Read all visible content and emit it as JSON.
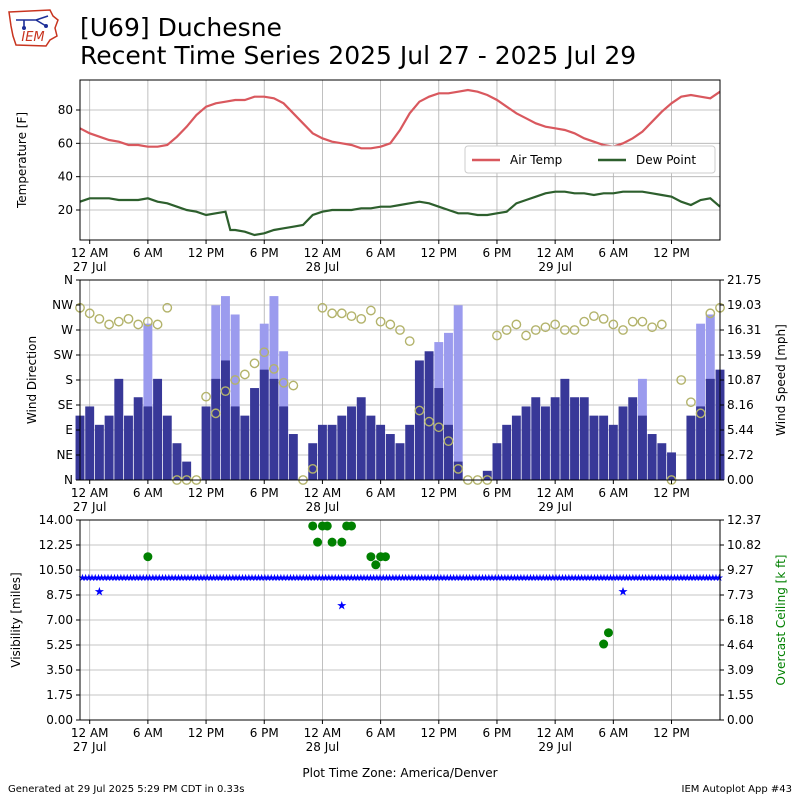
{
  "header": {
    "title_line1": "[U69] Duchesne",
    "title_line2": "Recent Time Series 2025 Jul 27 - 2025 Jul 29",
    "logo_text": "IEM"
  },
  "footer": {
    "generated": "Generated at 29 Jul 2025 5:29 PM CDT in 0.33s",
    "app": "IEM Autoplot App #43"
  },
  "colors": {
    "air_temp": "#d9585e",
    "dew_point": "#2d5f2d",
    "wind_speed": "#383898",
    "wind_gust": "#9b9bee",
    "wind_dir": "#b3b36b",
    "visibility": "#0000ff",
    "ceiling": "#008000"
  },
  "chart_data": [
    {
      "type": "line",
      "xlabel": "",
      "ylabel": "Temperature [F]",
      "xlim_hours": [
        0,
        66
      ],
      "ylim": [
        2,
        98
      ],
      "yticks": [
        20,
        40,
        60,
        80
      ],
      "xtick_hours": [
        1,
        7,
        13,
        19,
        25,
        31,
        37,
        43,
        49,
        55,
        61
      ],
      "xtick_labels": [
        "12 AM",
        "6 AM",
        "12 PM",
        "6 PM",
        "12 AM",
        "6 AM",
        "12 PM",
        "6 PM",
        "12 AM",
        "6 AM",
        "12 PM"
      ],
      "xtick_dates": [
        "27 Jul",
        "",
        "",
        "",
        "28 Jul",
        "",
        "",
        "",
        "29 Jul",
        "",
        ""
      ],
      "grid": true,
      "legend": "center-right",
      "series": [
        {
          "name": "Air Temp",
          "hours": [
            0,
            1,
            2,
            3,
            4,
            5,
            6,
            7,
            8,
            9,
            10,
            11,
            12,
            13,
            14,
            15,
            16,
            17,
            18,
            19,
            20,
            21,
            22,
            23,
            24,
            25,
            26,
            27,
            28,
            29,
            30,
            31,
            32,
            33,
            34,
            35,
            36,
            37,
            38,
            39,
            40,
            41,
            42,
            43,
            44,
            45,
            46,
            47,
            48,
            49,
            50,
            51,
            52,
            53,
            54,
            55,
            56,
            57,
            58,
            59,
            60,
            61,
            62,
            63,
            64,
            65,
            66
          ],
          "values": [
            69,
            66,
            64,
            62,
            61,
            59,
            59,
            58,
            58,
            59,
            64,
            70,
            77,
            82,
            84,
            85,
            86,
            86,
            88,
            88,
            87,
            84,
            78,
            72,
            66,
            63,
            61,
            60,
            59,
            57,
            57,
            58,
            60,
            68,
            78,
            85,
            88,
            90,
            90,
            91,
            92,
            91,
            89,
            86,
            82,
            78,
            75,
            72,
            70,
            69,
            68,
            66,
            63,
            61,
            59,
            58,
            60,
            63,
            67,
            73,
            79,
            84,
            88,
            89,
            88,
            87,
            91
          ]
        },
        {
          "name": "Dew Point",
          "hours": [
            0,
            1,
            2,
            3,
            4,
            5,
            6,
            7,
            8,
            9,
            10,
            11,
            12,
            13,
            14,
            15,
            15.5,
            16,
            17,
            18,
            19,
            20,
            21,
            22,
            23,
            24,
            25,
            26,
            27,
            28,
            29,
            30,
            31,
            32,
            33,
            34,
            35,
            36,
            37,
            38,
            39,
            40,
            41,
            42,
            43,
            44,
            45,
            46,
            47,
            48,
            49,
            50,
            51,
            52,
            53,
            54,
            55,
            56,
            57,
            58,
            59,
            60,
            61,
            62,
            63,
            64,
            65,
            66
          ],
          "values": [
            25,
            27,
            27,
            27,
            26,
            26,
            26,
            27,
            25,
            24,
            22,
            20,
            19,
            17,
            18,
            19,
            8,
            8,
            7,
            5,
            6,
            8,
            9,
            10,
            11,
            17,
            19,
            20,
            20,
            20,
            21,
            21,
            22,
            22,
            23,
            24,
            25,
            24,
            22,
            20,
            18,
            18,
            17,
            17,
            18,
            19,
            24,
            26,
            28,
            30,
            31,
            31,
            30,
            30,
            29,
            30,
            30,
            31,
            31,
            31,
            30,
            29,
            28,
            25,
            23,
            26,
            27,
            22
          ]
        }
      ]
    },
    {
      "type": "bar",
      "xlabel": "",
      "ylabel": "Wind Direction",
      "ylabel_right": "Wind Speed [mph]",
      "xlim_hours": [
        0,
        66
      ],
      "ylim_right": [
        0,
        21.75
      ],
      "yticks_left": [
        "N",
        "NE",
        "E",
        "SE",
        "S",
        "SW",
        "W",
        "NW",
        "N"
      ],
      "yticks_right": [
        "0.00",
        "2.72",
        "5.44",
        "8.16",
        "10.87",
        "13.59",
        "16.31",
        "19.03",
        "21.75"
      ],
      "grid": true,
      "series": [
        {
          "name": "",
          "role": "wind speed [mph]",
          "hours": [
            0,
            1,
            2,
            3,
            4,
            5,
            6,
            7,
            8,
            9,
            10,
            11,
            12,
            13,
            14,
            15,
            16,
            17,
            18,
            19,
            20,
            21,
            22,
            23,
            24,
            25,
            26,
            27,
            28,
            29,
            30,
            31,
            32,
            33,
            34,
            35,
            36,
            37,
            38,
            39,
            40,
            41,
            42,
            43,
            44,
            45,
            46,
            47,
            48,
            49,
            50,
            51,
            52,
            53,
            54,
            55,
            56,
            57,
            58,
            59,
            60,
            61,
            62,
            63,
            64,
            65,
            66
          ],
          "values": [
            7,
            8,
            6,
            7,
            11,
            7,
            9,
            8,
            11,
            7,
            4,
            2,
            0,
            8,
            11,
            13,
            8,
            7,
            10,
            12,
            11,
            8,
            5,
            0,
            4,
            6,
            6,
            7,
            8,
            9,
            7,
            6,
            5,
            4,
            6,
            13,
            14,
            10,
            6,
            2,
            0,
            0,
            1,
            4,
            6,
            7,
            8,
            9,
            8,
            9,
            11,
            9,
            9,
            7,
            7,
            6,
            8,
            9,
            7,
            5,
            4,
            3,
            0,
            7,
            8,
            11,
            12
          ]
        },
        {
          "name": "",
          "role": "wind gust [mph]",
          "hours": [
            7,
            14,
            15,
            16,
            19,
            20,
            21,
            37,
            38,
            39,
            58,
            64,
            65
          ],
          "values": [
            17,
            19,
            20,
            18,
            17,
            20,
            14,
            15,
            16,
            19,
            11,
            17,
            18
          ]
        },
        {
          "name": "",
          "role": "wind direction [deg]",
          "hours": [
            0,
            1,
            2,
            3,
            4,
            5,
            6,
            7,
            8,
            9,
            10,
            11,
            12,
            13,
            14,
            15,
            16,
            17,
            18,
            19,
            20,
            21,
            22,
            23,
            24,
            25,
            26,
            27,
            28,
            29,
            30,
            31,
            32,
            33,
            34,
            35,
            36,
            37,
            38,
            39,
            40,
            41,
            42,
            43,
            44,
            45,
            46,
            47,
            48,
            49,
            50,
            51,
            52,
            53,
            54,
            55,
            56,
            57,
            58,
            59,
            60,
            61,
            62,
            63,
            64,
            65,
            66
          ],
          "values": [
            310,
            300,
            290,
            280,
            285,
            290,
            280,
            285,
            280,
            310,
            0,
            0,
            0,
            150,
            120,
            160,
            180,
            190,
            210,
            230,
            200,
            175,
            170,
            0,
            20,
            310,
            300,
            300,
            295,
            290,
            305,
            285,
            280,
            270,
            250,
            125,
            105,
            95,
            70,
            20,
            0,
            0,
            0,
            260,
            270,
            280,
            260,
            270,
            275,
            280,
            270,
            270,
            285,
            295,
            290,
            280,
            270,
            285,
            285,
            275,
            280,
            0,
            180,
            140,
            120,
            300,
            310
          ]
        }
      ]
    },
    {
      "type": "scatter",
      "xlabel": "Plot Time Zone: America/Denver",
      "ylabel": "Visibility [miles]",
      "ylabel_right": "Overcast Ceiling [k ft]",
      "xlim_hours": [
        0,
        66
      ],
      "ylim": [
        0,
        14
      ],
      "ylim_right": [
        0,
        12.37
      ],
      "yticks_left": [
        "0.00",
        "1.75",
        "3.50",
        "5.25",
        "7.00",
        "8.75",
        "10.50",
        "12.25",
        "14.00"
      ],
      "yticks_right": [
        "0.00",
        "1.55",
        "3.09",
        "4.64",
        "6.18",
        "7.73",
        "9.27",
        "10.82",
        "12.37"
      ],
      "grid": true,
      "series": [
        {
          "name": "",
          "role": "visibility [miles]",
          "hours": [
            2,
            27,
            56
          ],
          "values": [
            9,
            8,
            9
          ],
          "baseline_value": 10,
          "baseline_hours": [
            0,
            66
          ]
        },
        {
          "name": "",
          "role": "overcast ceiling [k ft]",
          "hours": [
            7,
            24,
            24.5,
            25,
            25.5,
            26,
            27,
            27.5,
            28,
            30,
            30.5,
            31,
            31.5,
            54,
            54.5
          ],
          "values": [
            10.1,
            12.0,
            11.0,
            12.0,
            12.0,
            11.0,
            11.0,
            12.0,
            12.0,
            10.1,
            9.6,
            10.1,
            10.1,
            4.7,
            5.4
          ]
        }
      ]
    }
  ]
}
